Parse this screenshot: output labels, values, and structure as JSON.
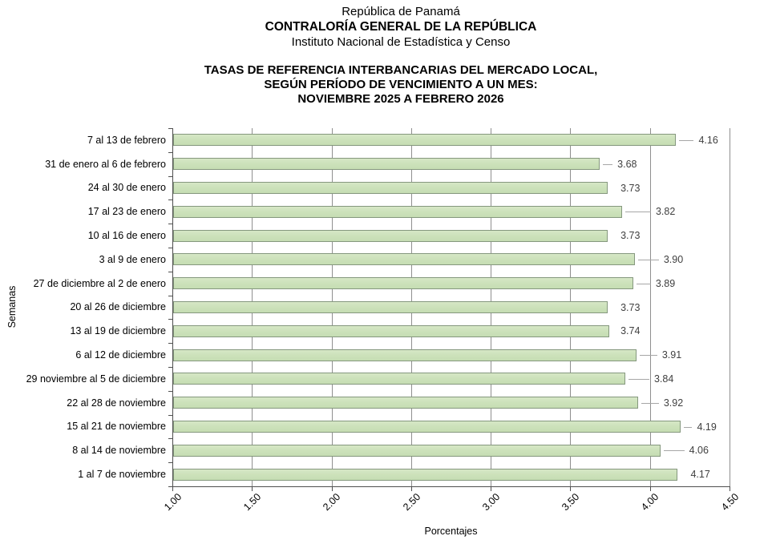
{
  "header": {
    "line1": "República de Panamá",
    "line2": "CONTRALORÍA GENERAL DE LA REPÚBLICA",
    "line3": "Instituto Nacional de Estadística y Censo"
  },
  "title": {
    "line1": "TASAS DE REFERENCIA INTERBANCARIAS DEL MERCADO LOCAL,",
    "line2": "SEGÚN PERÍODO DE VENCIMIENTO A UN MES:",
    "line3": "NOVIEMBRE 2025 A FEBRERO 2026"
  },
  "chart_data": {
    "type": "bar",
    "orientation": "horizontal",
    "title": "TASAS DE REFERENCIA INTERBANCARIAS DEL MERCADO LOCAL, SEGÚN PERÍODO DE VENCIMIENTO A UN MES: NOVIEMBRE 2025 A FEBRERO 2026",
    "categories": [
      "7 al 13 de febrero",
      "31 de enero al 6 de febrero",
      "24 al 30 de enero",
      "17 al 23 de enero",
      "10 al 16 de enero",
      "3 al 9 de enero",
      "27 de diciembre al 2 de enero",
      "20 al 26 de diciembre",
      "13 al 19 de diciembre",
      "6 al 12 de diciembre",
      "29 noviembre al 5 de diciembre",
      "22 al 28 de noviembre",
      "15 al 21 de noviembre",
      "8 al 14 de noviembre",
      "1 al 7 de noviembre"
    ],
    "values": [
      4.16,
      3.68,
      3.73,
      3.82,
      3.73,
      3.9,
      3.89,
      3.73,
      3.74,
      3.91,
      3.84,
      3.92,
      4.19,
      4.06,
      4.17
    ],
    "value_labels": [
      "4.16",
      "3.68",
      "3.73",
      "3.82",
      "3.73",
      "3.90",
      "3.89",
      "3.73",
      "3.74",
      "3.91",
      "3.84",
      "3.92",
      "4.19",
      "4.06",
      "4.17"
    ],
    "xlabel": "Porcentajes",
    "ylabel": "Semanas",
    "xlim": [
      1.0,
      4.5
    ],
    "xticks": [
      "1.00",
      "1.50",
      "2.00",
      "2.50",
      "3.00",
      "3.50",
      "4.00",
      "4.50"
    ],
    "grid": true,
    "legend": null,
    "bar_color": "#cde2bb",
    "bar_border_color": "#85987e",
    "gridline_color": "#8f8f8f",
    "axis_color": "#4f4f4f"
  }
}
